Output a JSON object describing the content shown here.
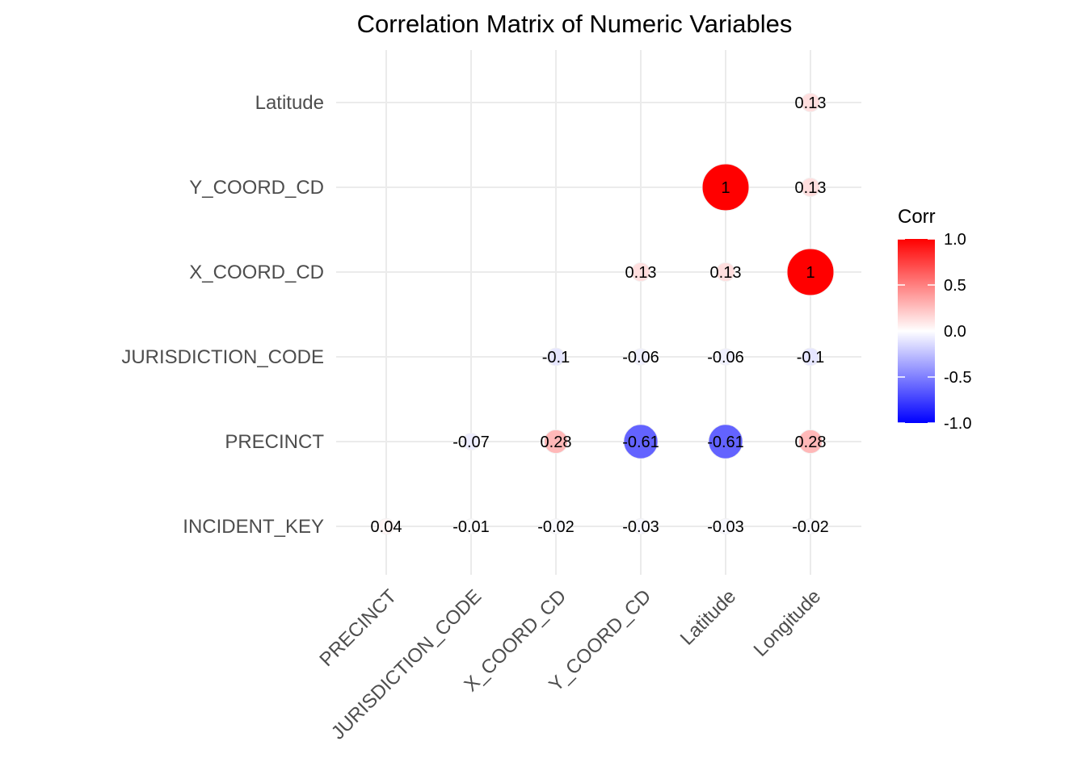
{
  "chart_data": {
    "type": "correlogram",
    "title": "Correlation Matrix of Numeric Variables",
    "x_categories": [
      "PRECINCT",
      "JURISDICTION_CODE",
      "X_COORD_CD",
      "Y_COORD_CD",
      "Latitude",
      "Longitude"
    ],
    "y_categories": [
      "INCIDENT_KEY",
      "PRECINCT",
      "JURISDICTION_CODE",
      "X_COORD_CD",
      "Y_COORD_CD",
      "Latitude"
    ],
    "cells": [
      {
        "x": "PRECINCT",
        "y": "INCIDENT_KEY",
        "value": 0.04,
        "label": "0.04"
      },
      {
        "x": "JURISDICTION_CODE",
        "y": "INCIDENT_KEY",
        "value": -0.01,
        "label": "-0.01"
      },
      {
        "x": "X_COORD_CD",
        "y": "INCIDENT_KEY",
        "value": -0.02,
        "label": "-0.02"
      },
      {
        "x": "Y_COORD_CD",
        "y": "INCIDENT_KEY",
        "value": -0.03,
        "label": "-0.03"
      },
      {
        "x": "Latitude",
        "y": "INCIDENT_KEY",
        "value": -0.03,
        "label": "-0.03"
      },
      {
        "x": "Longitude",
        "y": "INCIDENT_KEY",
        "value": -0.02,
        "label": "-0.02"
      },
      {
        "x": "JURISDICTION_CODE",
        "y": "PRECINCT",
        "value": -0.07,
        "label": "-0.07"
      },
      {
        "x": "X_COORD_CD",
        "y": "PRECINCT",
        "value": 0.28,
        "label": "0.28"
      },
      {
        "x": "Y_COORD_CD",
        "y": "PRECINCT",
        "value": -0.61,
        "label": "-0.61"
      },
      {
        "x": "Latitude",
        "y": "PRECINCT",
        "value": -0.61,
        "label": "-0.61"
      },
      {
        "x": "Longitude",
        "y": "PRECINCT",
        "value": 0.28,
        "label": "0.28"
      },
      {
        "x": "X_COORD_CD",
        "y": "JURISDICTION_CODE",
        "value": -0.1,
        "label": "-0.1"
      },
      {
        "x": "Y_COORD_CD",
        "y": "JURISDICTION_CODE",
        "value": -0.06,
        "label": "-0.06"
      },
      {
        "x": "Latitude",
        "y": "JURISDICTION_CODE",
        "value": -0.06,
        "label": "-0.06"
      },
      {
        "x": "Longitude",
        "y": "JURISDICTION_CODE",
        "value": -0.1,
        "label": "-0.1"
      },
      {
        "x": "Y_COORD_CD",
        "y": "X_COORD_CD",
        "value": 0.13,
        "label": "0.13"
      },
      {
        "x": "Latitude",
        "y": "X_COORD_CD",
        "value": 0.13,
        "label": "0.13"
      },
      {
        "x": "Longitude",
        "y": "X_COORD_CD",
        "value": 1,
        "label": "1"
      },
      {
        "x": "Latitude",
        "y": "Y_COORD_CD",
        "value": 1,
        "label": "1"
      },
      {
        "x": "Longitude",
        "y": "Y_COORD_CD",
        "value": 0.13,
        "label": "0.13"
      },
      {
        "x": "Longitude",
        "y": "Latitude",
        "value": 0.13,
        "label": "0.13"
      }
    ],
    "legend": {
      "title": "Corr",
      "ticks": [
        "1.0",
        "0.5",
        "0.0",
        "-0.5",
        "-1.0"
      ],
      "tick_values": [
        1.0,
        0.5,
        0.0,
        -0.5,
        -1.0
      ],
      "range": [
        -1,
        1
      ],
      "position": "right"
    },
    "colors": {
      "low": "#0000FF",
      "mid": "#FFFFFF",
      "high": "#FF0000",
      "grid": "#EBEBEB",
      "axis_text": "#4D4D4D"
    },
    "grid": true
  }
}
